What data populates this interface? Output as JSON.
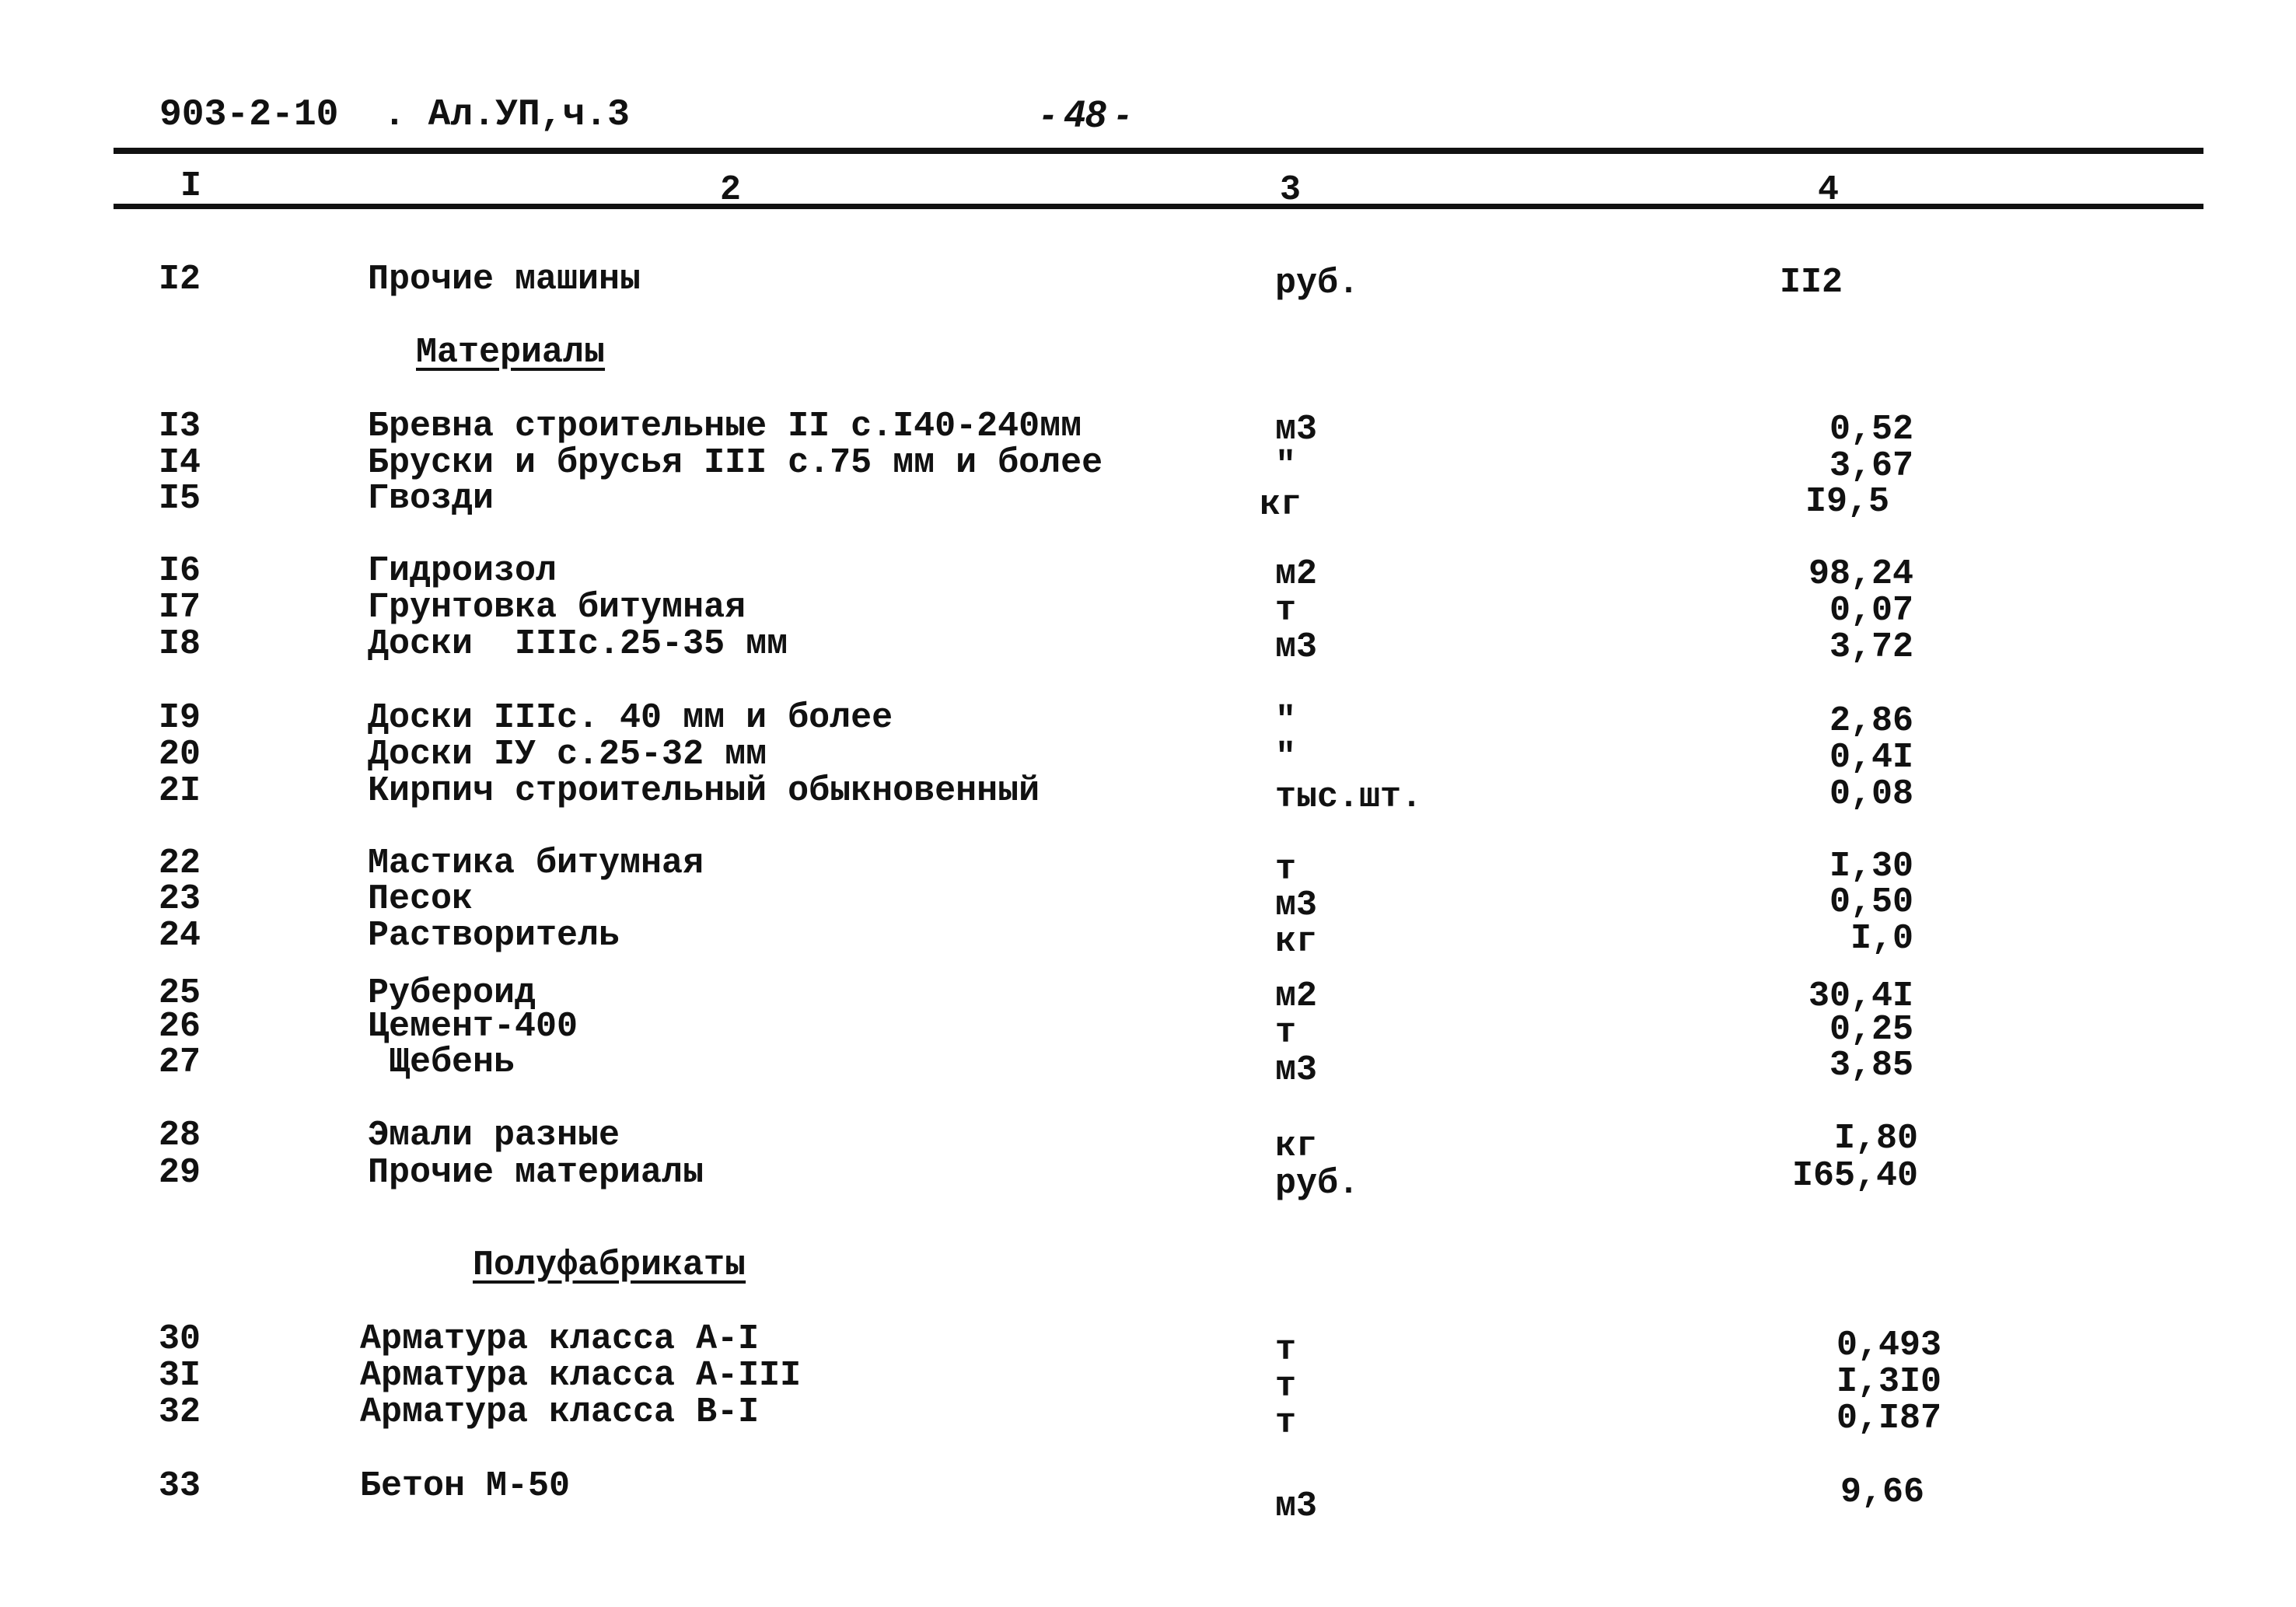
{
  "header": {
    "doc_code": "903-2-10  . Ал.УП,ч.3",
    "page_number": "- 48 -"
  },
  "columns": [
    "I",
    "2",
    "3",
    "4"
  ],
  "rows": [
    {
      "num": "I2",
      "name": "Прочие машины",
      "unit": "руб.",
      "value": "II2"
    },
    {
      "section": "Материалы"
    },
    {
      "num": "I3",
      "name": "Бревна строительные II с.I40-240мм",
      "unit": "м3",
      "value": "0,52"
    },
    {
      "num": "I4",
      "name": "Бруски и брусья III с.75 мм и более",
      "unit": "\"",
      "value": "3,67"
    },
    {
      "num": "I5",
      "name": "Гвозди",
      "unit": "кг",
      "value": "I9,5"
    },
    {
      "num": "I6",
      "name": "Гидроизол",
      "unit": "м2",
      "value": "98,24"
    },
    {
      "num": "I7",
      "name": "Грунтовка битумная",
      "unit": "т",
      "value": "0,07"
    },
    {
      "num": "I8",
      "name": "Доски  IIIс.25-35 мм",
      "unit": "м3",
      "value": "3,72"
    },
    {
      "num": "I9",
      "name": "Доски IIIс. 40 мм и более",
      "unit": "\"",
      "value": "2,86"
    },
    {
      "num": "20",
      "name": "Доски IУ с.25-32 мм",
      "unit": "\"",
      "value": "0,4I"
    },
    {
      "num": "2I",
      "name": "Кирпич строительный обыкновенный",
      "unit": "тыс.шт.",
      "value": "0,08"
    },
    {
      "num": "22",
      "name": "Мастика битумная",
      "unit": "т",
      "value": "I,30"
    },
    {
      "num": "23",
      "name": "Песок",
      "unit": "м3",
      "value": "0,50"
    },
    {
      "num": "24",
      "name": "Растворитель",
      "unit": "кг",
      "value": "I,0"
    },
    {
      "num": "25",
      "name": "Рубероид",
      "unit": "м2",
      "value": "30,4I"
    },
    {
      "num": "26",
      "name": "Цемент-400",
      "unit": "т",
      "value": "0,25"
    },
    {
      "num": "27",
      "name": " Щебень",
      "unit": "м3",
      "value": "3,85"
    },
    {
      "num": "28",
      "name": "Эмали разные",
      "unit": "кг",
      "value": "I,80"
    },
    {
      "num": "29",
      "name": "Прочие материалы",
      "unit": "руб.",
      "value": "I65,40"
    },
    {
      "section": "Полуфабрикаты"
    },
    {
      "num": "30",
      "name": "Арматура класса А-I",
      "unit": "т",
      "value": "0,493"
    },
    {
      "num": "3I",
      "name": "Арматура класса А-III",
      "unit": "т",
      "value": "I,3I0"
    },
    {
      "num": "32",
      "name": "Арматура класса В-I",
      "unit": "т",
      "value": "0,I87"
    },
    {
      "num": "33",
      "name": "Бетон М-50",
      "unit": "м3",
      "value": "9,66"
    }
  ]
}
